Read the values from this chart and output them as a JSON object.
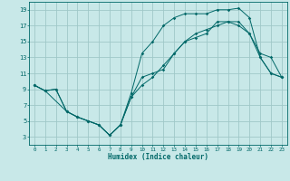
{
  "xlabel": "Humidex (Indice chaleur)",
  "bg_color": "#c8e8e8",
  "grid_color": "#a0c8c8",
  "line_color": "#006868",
  "xlim": [
    -0.5,
    23.5
  ],
  "ylim": [
    2.0,
    20.0
  ],
  "xticks": [
    0,
    1,
    2,
    3,
    4,
    5,
    6,
    7,
    8,
    9,
    10,
    11,
    12,
    13,
    14,
    15,
    16,
    17,
    18,
    19,
    20,
    21,
    22,
    23
  ],
  "yticks": [
    3,
    5,
    7,
    9,
    11,
    13,
    15,
    17,
    19
  ],
  "line1_x": [
    0,
    1,
    2,
    3,
    4,
    5,
    6,
    7,
    8,
    9,
    10,
    11,
    12,
    13,
    14,
    15,
    16,
    17,
    18,
    19,
    20,
    21,
    22,
    23
  ],
  "line1_y": [
    9.5,
    8.8,
    9.0,
    6.2,
    5.5,
    5.0,
    4.5,
    3.2,
    4.5,
    8.0,
    10.5,
    11.0,
    11.5,
    13.5,
    15.0,
    16.0,
    16.5,
    17.0,
    17.5,
    17.0,
    16.0,
    13.0,
    11.0,
    10.5
  ],
  "line2_x": [
    0,
    1,
    3,
    4,
    5,
    6,
    7,
    8,
    9,
    10,
    11,
    12,
    13,
    14,
    15,
    16,
    17,
    18,
    19,
    20,
    21,
    22,
    23
  ],
  "line2_y": [
    9.5,
    8.8,
    6.2,
    5.5,
    5.0,
    4.5,
    3.2,
    4.5,
    8.5,
    13.5,
    15.0,
    17.0,
    18.0,
    18.5,
    18.5,
    18.5,
    19.0,
    19.0,
    19.2,
    18.0,
    13.0,
    11.0,
    10.5
  ],
  "line3_x": [
    0,
    1,
    2,
    3,
    4,
    5,
    6,
    7,
    8,
    9,
    10,
    11,
    12,
    13,
    14,
    15,
    16,
    17,
    18,
    19,
    20,
    21,
    22,
    23
  ],
  "line3_y": [
    9.5,
    8.8,
    9.0,
    6.2,
    5.5,
    5.0,
    4.5,
    3.2,
    4.5,
    8.0,
    9.5,
    10.5,
    12.0,
    13.5,
    15.0,
    15.5,
    16.0,
    17.5,
    17.5,
    17.5,
    16.0,
    13.5,
    13.0,
    10.5
  ]
}
